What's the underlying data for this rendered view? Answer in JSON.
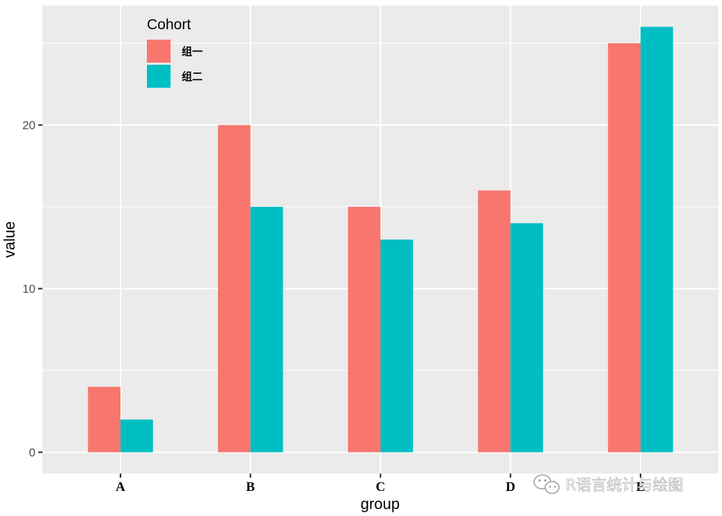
{
  "chart_data": {
    "type": "bar",
    "title": "",
    "xlabel": "group",
    "ylabel": "value",
    "categories": [
      "A",
      "B",
      "C",
      "D",
      "E"
    ],
    "series": [
      {
        "name": "组一",
        "color": "#f8766d",
        "values": [
          4,
          20,
          15,
          16,
          25
        ]
      },
      {
        "name": "组二",
        "color": "#00bfc4",
        "values": [
          2,
          15,
          13,
          14,
          26
        ]
      }
    ],
    "ylim": [
      -1.3,
      27.3
    ],
    "yticks": [
      0,
      10,
      20
    ],
    "grid": true,
    "legend": {
      "title": "Cohort",
      "position": "top-left"
    }
  },
  "watermark": {
    "text": "R语言统计与绘图",
    "icon": "wechat-icon"
  }
}
